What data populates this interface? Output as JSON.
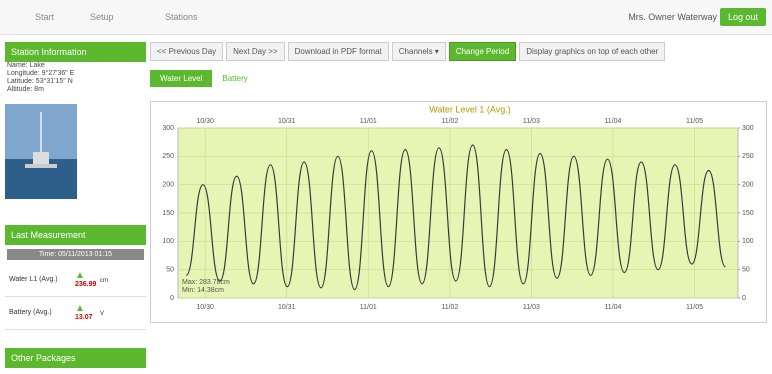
{
  "nav": {
    "links": [
      "Start",
      "Setup",
      "Stations"
    ],
    "user": "Mrs. Owner Waterway",
    "logout": "Log out"
  },
  "sidebar": {
    "station_title": "Station Information",
    "fields": [
      "Name: Lake",
      "Longitude: 9°27'36\" E",
      "Latitude: 53°31'15\" N",
      "Altitude: 8m"
    ],
    "measure_title": "Last Measurement",
    "measure_time": "Time: 05/11/2013 01:15",
    "measurements": [
      {
        "label": "Water L1 (Avg.)",
        "value": "236.99",
        "unit": "cm"
      },
      {
        "label": "Battery (Avg.)",
        "value": "13.07",
        "unit": "V"
      }
    ],
    "other_title": "Other Packages"
  },
  "toolbar": [
    "<< Previous Day",
    "Next Day >>",
    "Download in PDF format",
    "Channels ▾",
    "Change Period",
    "Display graphics on top of each other"
  ],
  "tabs": [
    "Water Level",
    "Battery"
  ],
  "chart_data": {
    "type": "line",
    "title": "Water Level 1 (Avg.)",
    "x": [
      3,
      9.2,
      15.4,
      21.6,
      27.8,
      34,
      40.2,
      46.4,
      52.6,
      58.8,
      65,
      71.2,
      77.4,
      83.6,
      89.8,
      96,
      102.2,
      108.4,
      114.6,
      120.8,
      127,
      133.2,
      139.4,
      145.6,
      151.8,
      158,
      164.2,
      170.4,
      176.6,
      182.8,
      189,
      195.2,
      201.4
    ],
    "series": [
      {
        "name": "Water Level 1 (Avg.)",
        "color": "#3a3a3a",
        "values": [
          40,
          200,
          30,
          215,
          25,
          235,
          20,
          240,
          18,
          250,
          15,
          260,
          20,
          262,
          25,
          265,
          30,
          270,
          20,
          262,
          25,
          255,
          35,
          250,
          40,
          245,
          45,
          240,
          50,
          235,
          60,
          225,
          55
        ]
      }
    ],
    "xlim": [
      0,
      206
    ],
    "xticks": [
      {
        "value": 10,
        "label": "10/30"
      },
      {
        "value": 40,
        "label": "10/31"
      },
      {
        "value": 70,
        "label": "11/01"
      },
      {
        "value": 100,
        "label": "11/02"
      },
      {
        "value": 130,
        "label": "11/03"
      },
      {
        "value": 160,
        "label": "11/04"
      },
      {
        "value": 190,
        "label": "11/05"
      }
    ],
    "ylim": [
      0,
      300
    ],
    "yticks": [
      0,
      50,
      100,
      150,
      200,
      250,
      300
    ],
    "y2lim": [
      0,
      300
    ],
    "y2ticks": [
      0,
      50,
      100,
      150,
      200,
      250,
      300
    ],
    "grid": true,
    "background": "#e6f5b4",
    "annotations": [
      "Max: 283.78cm",
      "Min: 14.38cm"
    ]
  }
}
